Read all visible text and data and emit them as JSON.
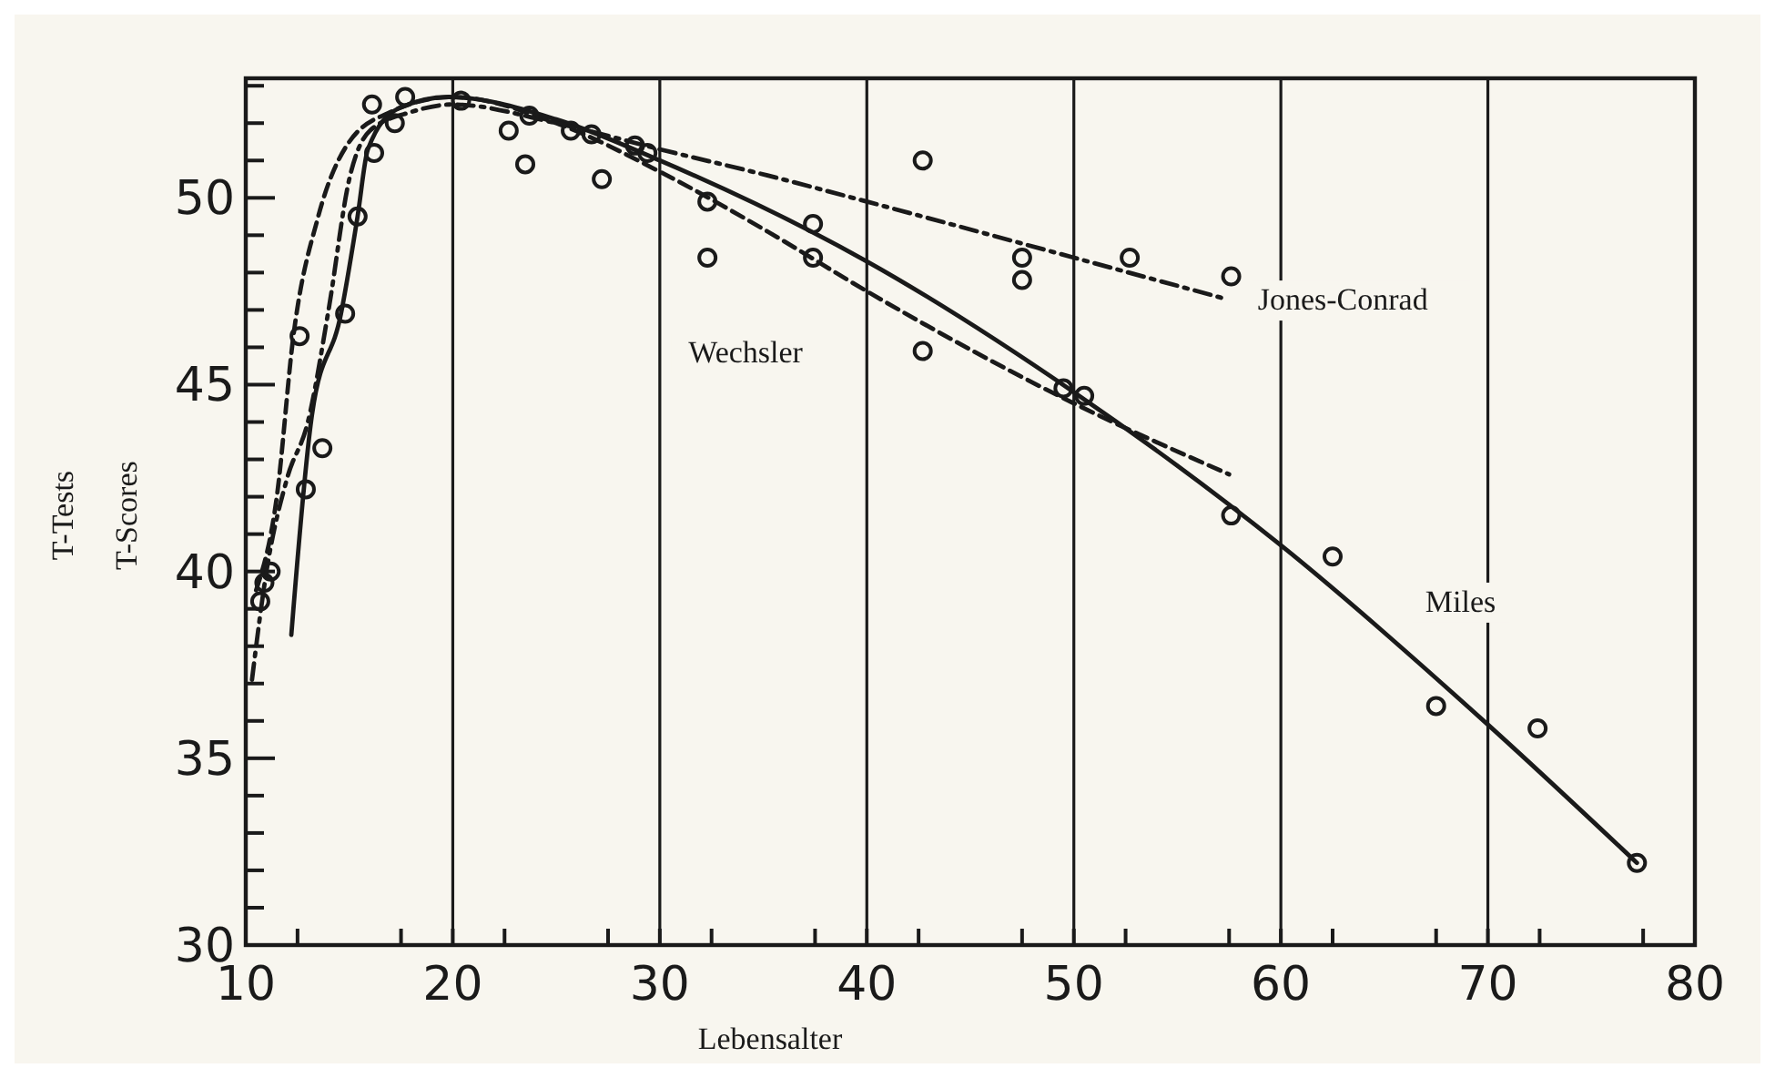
{
  "chart_data": {
    "type": "line",
    "xlabel": "Lebensalter",
    "ylabel": "T-Tests\nT-Scores",
    "xlim": [
      10,
      80
    ],
    "ylim": [
      30,
      53.2
    ],
    "xticks": [
      10,
      {
        "value": 12.5,
        "label": null
      },
      {
        "value": 17.5,
        "label": null
      },
      20,
      {
        "value": 22.5,
        "label": null
      },
      {
        "value": 27.5,
        "label": null
      },
      30,
      {
        "value": 32.5,
        "label": null
      },
      {
        "value": 37.5,
        "label": null
      },
      40,
      {
        "value": 42.5,
        "label": null
      },
      {
        "value": 47.5,
        "label": null
      },
      50,
      {
        "value": 52.5,
        "label": null
      },
      {
        "value": 57.5,
        "label": null
      },
      60,
      {
        "value": 62.5,
        "label": null
      },
      {
        "value": 67.5,
        "label": null
      },
      70,
      {
        "value": 72.5,
        "label": null
      },
      {
        "value": 77.5,
        "label": null
      },
      80
    ],
    "yticks": [
      30,
      {
        "value": 31,
        "label": null
      },
      {
        "value": 32,
        "label": null
      },
      {
        "value": 33,
        "label": null
      },
      {
        "value": 34,
        "label": null
      },
      35,
      {
        "value": 36,
        "label": null
      },
      {
        "value": 37,
        "label": null
      },
      {
        "value": 38,
        "label": null
      },
      {
        "value": 39,
        "label": null
      },
      40,
      {
        "value": 41,
        "label": null
      },
      {
        "value": 42,
        "label": null
      },
      {
        "value": 43,
        "label": null
      },
      {
        "value": 44,
        "label": null
      },
      45,
      {
        "value": 46,
        "label": null
      },
      {
        "value": 47,
        "label": null
      },
      {
        "value": 48,
        "label": null
      },
      {
        "value": 49,
        "label": null
      },
      50,
      {
        "value": 51,
        "label": null
      },
      {
        "value": 52,
        "label": null
      },
      {
        "value": 53,
        "label": null
      }
    ],
    "grid": "x",
    "series": [
      {
        "name": "Miles",
        "color": "#1a1a1a",
        "line_style": "solid",
        "marker": "none",
        "x": [
          12.2,
          13.2,
          14.6,
          15.4,
          15.9,
          17.4,
          19.8,
          25,
          30,
          40,
          50,
          60,
          70,
          77.2
        ],
        "values": [
          38.3,
          44.2,
          46.9,
          49.5,
          51.3,
          52.4,
          52.7,
          52.1,
          51.0,
          48.3,
          44.8,
          40.7,
          35.9,
          32.2
        ]
      },
      {
        "name": "Wechsler",
        "color": "#1a1a1a",
        "line_style": "dashed",
        "marker": "none",
        "x": [
          10.5,
          11.5,
          12.3,
          13.5,
          15,
          17,
          20,
          25,
          30,
          35.2,
          40,
          50,
          57.5
        ],
        "values": [
          39.5,
          42,
          46.3,
          49.5,
          51.5,
          52.3,
          52.7,
          52,
          50.7,
          49.1,
          47.5,
          44.5,
          42.6
        ]
      },
      {
        "name": "Jones-Conrad",
        "color": "#1a1a1a",
        "line_style": "dashdot",
        "marker": "none",
        "x": [
          10.3,
          11,
          12,
          13,
          14,
          15,
          16,
          18,
          20,
          25,
          30,
          35.2,
          40,
          50,
          57.3
        ],
        "values": [
          37.1,
          40,
          42.5,
          44,
          47,
          50.5,
          51.8,
          52.3,
          52.5,
          52,
          51.3,
          50.6,
          49.9,
          48.4,
          47.3
        ]
      },
      {
        "type": "scatter",
        "color": "#1a1a1a",
        "marker": "circle",
        "x": [
          16.1,
          17.7,
          17.2,
          16.2,
          15.4,
          14.8,
          12.6,
          13.7,
          12.9,
          11.2,
          10.9,
          10.7,
          20.4,
          22.7,
          23.5,
          23.7,
          25.7,
          26.7,
          27.2,
          28.8,
          29.4,
          32.3,
          32.3,
          37.4,
          37.4,
          42.7,
          42.7,
          47.5,
          47.5,
          52.7,
          57.6,
          49.5,
          50.5,
          57.6,
          62.5,
          67.5,
          72.4,
          77.2
        ],
        "values": [
          52.5,
          52.7,
          52.0,
          51.2,
          49.5,
          46.9,
          46.3,
          43.3,
          42.2,
          40.0,
          39.7,
          39.2,
          52.6,
          51.8,
          50.9,
          52.2,
          51.8,
          51.7,
          50.5,
          51.4,
          51.2,
          49.9,
          48.4,
          49.3,
          48.4,
          51.0,
          45.9,
          48.4,
          47.8,
          48.4,
          47.9,
          44.9,
          44.7,
          41.5,
          40.4,
          36.4,
          35.8,
          32.2
        ]
      }
    ]
  }
}
